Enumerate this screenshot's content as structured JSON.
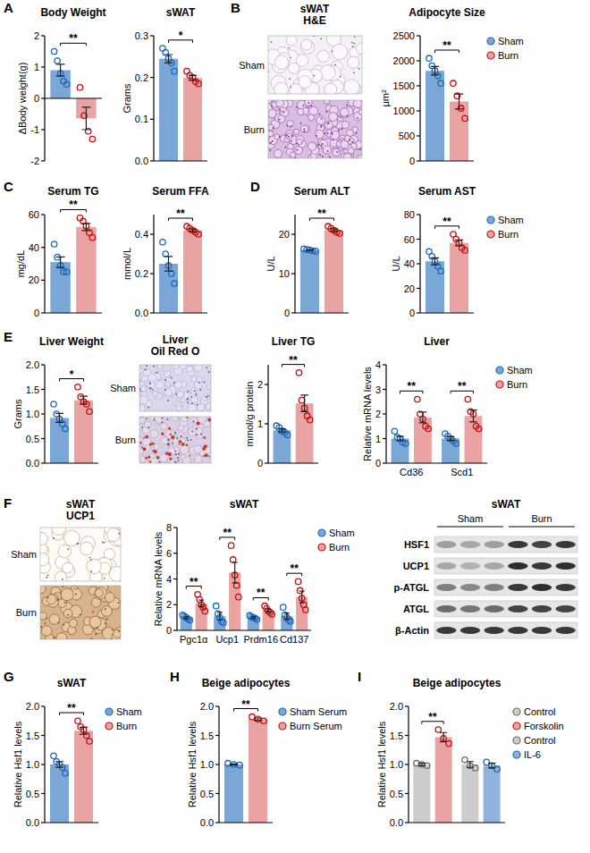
{
  "chart_data": [
    {
      "type": "bar",
      "panel": "A",
      "title": "Body Weight",
      "ylabel": "ΔBody weight(g)",
      "categories": [
        null
      ],
      "ylim": [
        -2,
        2
      ],
      "yticks": [
        -2,
        -1,
        0,
        1,
        2
      ],
      "series": [
        {
          "color": "#7ba7d7",
          "values": [
            0.9
          ],
          "errors": [
            0.19
          ],
          "points": [
            [
              1.5,
              1.2,
              0.8,
              0.55,
              0.45
            ]
          ]
        },
        {
          "color": "#e9a3a3",
          "values": [
            -0.64
          ],
          "errors": [
            0.36
          ],
          "points": [
            [
              0.35,
              -0.55,
              -1.05,
              -1.3
            ]
          ]
        }
      ],
      "annotations": [
        {
          "text": "**",
          "category": 0
        }
      ]
    },
    {
      "type": "bar",
      "title": "sWAT",
      "ylabel": "Grams",
      "categories": [
        null
      ],
      "ylim": [
        0,
        0.3
      ],
      "yticks": [
        {
          "value": 0,
          "label": "0.0"
        },
        0.1,
        0.2,
        0.3
      ],
      "series": [
        {
          "color": "#7ba7d7",
          "values": [
            0.245
          ],
          "errors": [
            0.01
          ],
          "points": [
            [
              0.27,
              0.26,
              0.245,
              0.235,
              0.215
            ]
          ]
        },
        {
          "color": "#e9a3a3",
          "values": [
            0.199
          ],
          "errors": [
            0.006
          ],
          "points": [
            [
              0.215,
              0.205,
              0.2,
              0.19,
              0.185
            ]
          ]
        }
      ],
      "annotations": [
        {
          "text": "*",
          "category": 0
        }
      ]
    },
    {
      "type": "bar",
      "title": "Adipocyte Size",
      "ylabel": "μm²",
      "categories": [
        null
      ],
      "ylim": [
        0,
        2500
      ],
      "yticks": [
        0,
        500,
        1000,
        1500,
        2000,
        2500
      ],
      "legend": "right",
      "series": [
        {
          "name": "Sham",
          "color": "#7ba7d7",
          "values": [
            1800
          ],
          "errors": [
            85
          ],
          "points": [
            [
              2050,
              1900,
              1800,
              1700,
              1550
            ]
          ]
        },
        {
          "name": "Burn",
          "color": "#e9a3a3",
          "values": [
            1187
          ],
          "errors": [
            150
          ],
          "points": [
            [
              1550,
              1300,
              1050,
              850
            ]
          ]
        }
      ],
      "annotations": [
        {
          "text": "**",
          "category": 0
        }
      ]
    },
    {
      "type": "bar",
      "panel": "C",
      "title": "Serum TG",
      "ylabel": "mg/dL",
      "categories": [
        null
      ],
      "ylim": [
        0,
        60
      ],
      "yticks": [
        0,
        20,
        40,
        60
      ],
      "series": [
        {
          "color": "#7ba7d7",
          "values": [
            31
          ],
          "errors": [
            3.2
          ],
          "points": [
            [
              42,
              34,
              29,
              25,
              25
            ]
          ]
        },
        {
          "color": "#e9a3a3",
          "values": [
            52.4
          ],
          "errors": [
            2.2
          ],
          "points": [
            [
              58,
              56,
              53,
              49,
              46
            ]
          ]
        }
      ],
      "annotations": [
        {
          "text": "**",
          "category": 0
        }
      ]
    },
    {
      "type": "bar",
      "title": "Serum FFA",
      "ylabel": "mmol/L",
      "categories": [
        null
      ],
      "ylim": [
        0,
        0.5
      ],
      "yticks": [
        {
          "value": 0,
          "label": "0.0"
        },
        0.2,
        0.4
      ],
      "series": [
        {
          "color": "#7ba7d7",
          "values": [
            0.25
          ],
          "errors": [
            0.037
          ],
          "points": [
            [
              0.36,
              0.3,
              0.24,
              0.2,
              0.15
            ]
          ]
        },
        {
          "color": "#e9a3a3",
          "values": [
            0.42
          ],
          "errors": [
            0.007
          ],
          "points": [
            [
              0.44,
              0.43,
              0.42,
              0.41,
              0.4
            ]
          ]
        }
      ],
      "annotations": [
        {
          "text": "**",
          "category": 0
        }
      ]
    },
    {
      "type": "bar",
      "panel": "D",
      "title": "Serum ALT",
      "ylabel": "U/L",
      "categories": [
        null
      ],
      "ylim": [
        0,
        25
      ],
      "yticks": [
        0,
        10,
        20
      ],
      "series": [
        {
          "color": "#7ba7d7",
          "values": [
            15.98
          ],
          "errors": [
            0.1
          ],
          "points": [
            [
              16.3,
              16.1,
              16,
              15.8,
              15.7
            ]
          ]
        },
        {
          "color": "#e9a3a3",
          "values": [
            21.04
          ],
          "errors": [
            0.33
          ],
          "points": [
            [
              22,
              21.5,
              21,
              20.5,
              20.2
            ]
          ]
        }
      ],
      "annotations": [
        {
          "text": "**",
          "category": 0
        }
      ]
    },
    {
      "type": "bar",
      "title": "Serum AST",
      "ylabel": "U/L",
      "categories": [
        null
      ],
      "ylim": [
        0,
        80
      ],
      "yticks": [
        0,
        20,
        40,
        60,
        80
      ],
      "legend": "right",
      "series": [
        {
          "name": "Sham",
          "color": "#7ba7d7",
          "values": [
            42
          ],
          "errors": [
            2.8
          ],
          "points": [
            [
              50,
              46,
              42,
              38,
              34
            ]
          ]
        },
        {
          "name": "Burn",
          "color": "#e9a3a3",
          "values": [
            57
          ],
          "errors": [
            2.3
          ],
          "points": [
            [
              64,
              60,
              57,
              53,
              51
            ]
          ]
        }
      ],
      "annotations": [
        {
          "text": "**",
          "category": 0
        }
      ]
    },
    {
      "type": "bar",
      "panel": "E",
      "title": "Liver Weight",
      "ylabel": "Grams",
      "categories": [
        null
      ],
      "ylim": [
        0,
        2
      ],
      "yticks": [
        {
          "value": 0,
          "label": "0.0"
        },
        0.5,
        {
          "value": 1,
          "label": "1.0"
        },
        1.5,
        {
          "value": 2,
          "label": "2.0"
        }
      ],
      "series": [
        {
          "color": "#7ba7d7",
          "values": [
            0.92
          ],
          "errors": [
            0.09
          ],
          "points": [
            [
              1.2,
              1.0,
              0.9,
              0.8,
              0.7
            ]
          ]
        },
        {
          "color": "#e9a3a3",
          "values": [
            1.28
          ],
          "errors": [
            0.08
          ],
          "points": [
            [
              1.55,
              1.35,
              1.25,
              1.2,
              1.05
            ]
          ]
        }
      ],
      "annotations": [
        {
          "text": "*",
          "category": 0
        }
      ]
    },
    {
      "type": "bar",
      "title": "Liver TG",
      "ylabel": "mmol/g protein",
      "categories": [
        null
      ],
      "ylim": [
        0,
        2.5
      ],
      "yticks": [
        0,
        1,
        2
      ],
      "series": [
        {
          "color": "#7ba7d7",
          "values": [
            0.834
          ],
          "errors": [
            0.04
          ],
          "points": [
            [
              0.95,
              0.9,
              0.82,
              0.78,
              0.72
            ]
          ]
        },
        {
          "color": "#e9a3a3",
          "values": [
            1.52
          ],
          "errors": [
            0.21
          ],
          "points": [
            [
              2.3,
              1.6,
              1.4,
              1.2,
              1.1
            ]
          ]
        }
      ],
      "annotations": [
        {
          "text": "**",
          "category": 0
        }
      ]
    },
    {
      "type": "bar",
      "title": "Liver",
      "ylabel": "Relative mRNA levels",
      "categories": [
        "Cd36",
        "Scd1"
      ],
      "ylim": [
        0,
        4
      ],
      "yticks": [
        0,
        1,
        2,
        3,
        4
      ],
      "legend": "right",
      "series": [
        {
          "name": "Sham",
          "color": "#7ba7d7",
          "values": [
            1.0,
            1.0
          ],
          "errors": [
            0.09,
            0.08
          ],
          "points": [
            [
              1.3,
              1.05,
              1.0,
              0.85,
              0.8
            ],
            [
              1.2,
              1.1,
              1.0,
              0.9,
              0.8
            ]
          ]
        },
        {
          "name": "Burn",
          "color": "#e9a3a3",
          "values": [
            1.86,
            1.92
          ],
          "errors": [
            0.22,
            0.24
          ],
          "points": [
            [
              2.6,
              2.0,
              1.8,
              1.5,
              1.4
            ],
            [
              2.6,
              2.1,
              2.0,
              1.5,
              1.4
            ]
          ]
        }
      ],
      "annotations": [
        {
          "text": "**",
          "category": 0
        },
        {
          "text": "**",
          "category": 1
        }
      ]
    },
    {
      "type": "bar",
      "title": "sWAT",
      "ylabel": "Relative mRNA levels",
      "categories": [
        "Pgc1α",
        "Ucp1",
        "Prdm16",
        "Cd137"
      ],
      "ylim": [
        0,
        8
      ],
      "yticks": [
        0,
        2,
        4,
        6,
        8
      ],
      "legend": "right",
      "series": [
        {
          "name": "Sham",
          "color": "#7ba7d7",
          "values": [
            1.0,
            1.1,
            1.0,
            1.1
          ],
          "errors": [
            0.08,
            0.3,
            0.07,
            0.25
          ],
          "points": [
            [
              1.2,
              1.1,
              1.0,
              0.9,
              0.8
            ],
            [
              1.9,
              1.3,
              1.0,
              0.7,
              0.6
            ],
            [
              1.15,
              1.05,
              1.0,
              0.95,
              0.85
            ],
            [
              1.8,
              1.2,
              1.0,
              0.8,
              0.7
            ]
          ]
        },
        {
          "name": "Burn",
          "color": "#e9a3a3",
          "values": [
            2.1,
            4.5,
            1.55,
            2.6
          ],
          "errors": [
            0.25,
            0.8,
            0.12,
            0.45
          ],
          "points": [
            [
              2.8,
              2.4,
              2.0,
              1.8,
              1.5
            ],
            [
              6.6,
              5.5,
              4.3,
              3.5,
              2.6
            ],
            [
              1.9,
              1.7,
              1.5,
              1.4,
              1.25
            ],
            [
              3.8,
              3.1,
              2.5,
              2.0,
              1.6
            ]
          ]
        }
      ],
      "annotations": [
        {
          "text": "**",
          "category": 0
        },
        {
          "text": "**",
          "category": 1
        },
        {
          "text": "**",
          "category": 2
        },
        {
          "text": "**",
          "category": 3
        }
      ]
    },
    {
      "type": "bar",
      "panel": "G",
      "title": "sWAT",
      "ylabel": "Relative Hsf1 levels",
      "categories": [
        null
      ],
      "ylim": [
        0,
        2
      ],
      "yticks": [
        {
          "value": 0,
          "label": "0.0"
        },
        0.5,
        {
          "value": 1,
          "label": "1.0"
        },
        1.5,
        {
          "value": 2,
          "label": "2.0"
        }
      ],
      "legend": "right",
      "series": [
        {
          "name": "Sham",
          "color": "#7ba7d7",
          "values": [
            1.0
          ],
          "errors": [
            0.05
          ],
          "points": [
            [
              1.15,
              1.05,
              1.0,
              0.95,
              0.85
            ]
          ]
        },
        {
          "name": "Burn",
          "color": "#e9a3a3",
          "values": [
            1.58
          ],
          "errors": [
            0.06
          ],
          "points": [
            [
              1.75,
              1.65,
              1.6,
              1.5,
              1.4
            ]
          ]
        }
      ],
      "annotations": [
        {
          "text": "**",
          "category": 0
        }
      ]
    },
    {
      "type": "bar",
      "panel": "H",
      "title": "Beige adipocytes",
      "ylabel": "Relative Hsf1 levels",
      "categories": [
        null
      ],
      "ylim": [
        0,
        2
      ],
      "yticks": [
        {
          "value": 0,
          "label": "0.0"
        },
        0.5,
        {
          "value": 1,
          "label": "1.0"
        },
        1.5,
        {
          "value": 2,
          "label": "2.0"
        }
      ],
      "legend": "right",
      "series": [
        {
          "name": "Sham Serum",
          "color": "#7ba7d7",
          "values": [
            1.0
          ],
          "errors": [
            0.01
          ],
          "points": [
            [
              1.02,
              1.0,
              0.99
            ]
          ]
        },
        {
          "name": "Burn Serum",
          "color": "#e9a3a3",
          "values": [
            1.78
          ],
          "errors": [
            0.02
          ],
          "points": [
            [
              1.82,
              1.78,
              1.75
            ]
          ]
        }
      ],
      "annotations": [
        {
          "text": "**",
          "category": 0
        }
      ]
    },
    {
      "type": "bar",
      "panel": "I",
      "title": "Beige adipocytes",
      "ylabel": "Relative Hsf1 levels",
      "categories": [
        null,
        null
      ],
      "ylim": [
        0,
        2
      ],
      "yticks": [
        {
          "value": 0,
          "label": "0.0"
        },
        0.5,
        {
          "value": 1,
          "label": "1.0"
        },
        1.5,
        {
          "value": 2,
          "label": "2.0"
        }
      ],
      "legend": "right",
      "series": [
        {
          "name": "Control",
          "color": "#cccccc",
          "values": [
            1.0,
            null
          ],
          "errors": [
            0.02,
            null
          ],
          "points": [
            [
              1.02,
              1.0,
              0.98
            ],
            null
          ]
        },
        {
          "name": "Forskolin",
          "color": "#e9a3a3",
          "values": [
            1.47,
            null
          ],
          "errors": [
            0.08,
            null
          ],
          "points": [
            [
              1.6,
              1.45,
              1.36
            ],
            null
          ]
        },
        {
          "name": "Control",
          "color": "#cccccc",
          "values": [
            null,
            1.0
          ],
          "errors": [
            null,
            0.05
          ],
          "points": [
            null,
            [
              1.08,
              0.98,
              0.94
            ]
          ]
        },
        {
          "name": "IL-6",
          "color": "#8fb3dc",
          "values": [
            null,
            0.98
          ],
          "errors": [
            null,
            0.04
          ],
          "points": [
            null,
            [
              1.04,
              0.98,
              0.92
            ]
          ]
        }
      ],
      "annotations": [
        {
          "text": "**",
          "category": 0
        }
      ]
    }
  ],
  "images": [
    {
      "panel": "B",
      "title": "sWAT H&E",
      "rows": [
        "Sham",
        "Burn"
      ]
    },
    {
      "title": "Liver Oil Red O",
      "rows": [
        "Sham",
        "Burn"
      ]
    },
    {
      "panel": "F",
      "title": "sWAT UCP1",
      "rows": [
        "Sham",
        "Burn"
      ]
    }
  ],
  "blot": {
    "title": "sWAT",
    "groups": [
      "Sham",
      "Burn"
    ],
    "rows": [
      "HSF1",
      "UCP1",
      "p-ATGL",
      "ATGL",
      "β-Actin"
    ]
  }
}
